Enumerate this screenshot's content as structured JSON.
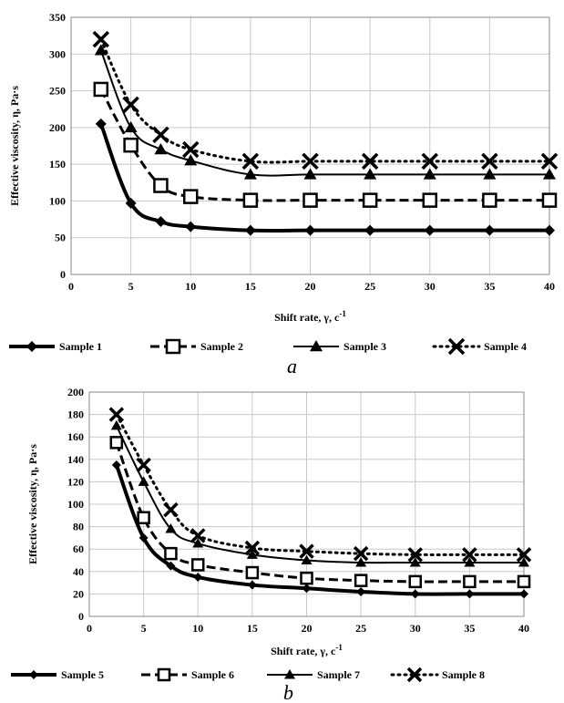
{
  "chart_data": [
    {
      "type": "line",
      "caption": "a",
      "xlabel": "Shift rate, γ, c",
      "xlabel_sup": "-1",
      "ylabel": "Effective viscosity, η, Pa·s",
      "xlim": [
        0,
        40
      ],
      "ylim": [
        0,
        350
      ],
      "xticks": [
        0,
        5,
        10,
        15,
        20,
        25,
        30,
        35,
        40
      ],
      "yticks": [
        0,
        50,
        100,
        150,
        200,
        250,
        300,
        350
      ],
      "grid": true,
      "legend_position": "bottom",
      "x": [
        2.5,
        5,
        7.5,
        10,
        15,
        20,
        25,
        30,
        35,
        40
      ],
      "series": [
        {
          "name": "Sample 1",
          "marker": "diamond",
          "line": "solid-thick",
          "values": [
            205,
            97,
            72,
            65,
            60,
            60,
            60,
            60,
            60,
            60
          ]
        },
        {
          "name": "Sample 2",
          "marker": "square-open",
          "line": "dashed",
          "values": [
            252,
            176,
            121,
            106,
            101,
            101,
            101,
            101,
            101,
            101
          ]
        },
        {
          "name": "Sample 3",
          "marker": "triangle",
          "line": "solid",
          "values": [
            305,
            200,
            170,
            155,
            136,
            136,
            136,
            136,
            136,
            136
          ]
        },
        {
          "name": "Sample 4",
          "marker": "x",
          "line": "dotted",
          "values": [
            320,
            231,
            190,
            170,
            154,
            154,
            154,
            154,
            154,
            154
          ]
        }
      ]
    },
    {
      "type": "line",
      "caption": "b",
      "xlabel": "Shift rate, γ, c",
      "xlabel_sup": "-1",
      "ylabel": "Effective viscosity, η, Pa·s",
      "xlim": [
        0,
        40
      ],
      "ylim": [
        0,
        200
      ],
      "xticks": [
        0,
        5,
        10,
        15,
        20,
        25,
        30,
        35,
        40
      ],
      "yticks": [
        0,
        20,
        40,
        60,
        80,
        100,
        120,
        140,
        160,
        180,
        200
      ],
      "grid": true,
      "legend_position": "bottom",
      "x": [
        2.5,
        5,
        7.5,
        10,
        15,
        20,
        25,
        30,
        35,
        40
      ],
      "series": [
        {
          "name": "Sample 5",
          "marker": "diamond",
          "line": "solid-thick",
          "values": [
            135,
            70,
            45,
            35,
            28,
            25,
            22,
            20,
            20,
            20
          ]
        },
        {
          "name": "Sample 6",
          "marker": "square-open",
          "line": "dashed",
          "values": [
            155,
            88,
            56,
            46,
            39,
            34,
            32,
            31,
            31,
            31
          ]
        },
        {
          "name": "Sample 7",
          "marker": "triangle",
          "line": "solid",
          "values": [
            170,
            120,
            78,
            65,
            55,
            50,
            48,
            48,
            48,
            48
          ]
        },
        {
          "name": "Sample 8",
          "marker": "x",
          "line": "dotted",
          "values": [
            180,
            135,
            95,
            72,
            61,
            58,
            56,
            55,
            55,
            55
          ]
        }
      ]
    }
  ]
}
